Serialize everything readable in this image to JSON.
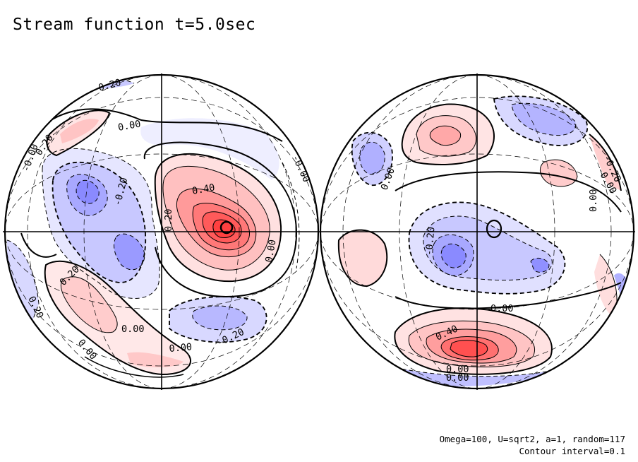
{
  "title": "Stream function t=5.0sec",
  "params_text": "Omega=100, U=sqrt2, a=1, random=117",
  "interval_text": "Contour interval=0.1",
  "colors": {
    "positive": "#ff4c4c",
    "negative": "#6464ff",
    "background": "#ffffff"
  },
  "left_labels": [
    "-0.20",
    "0.20",
    "0.00",
    "-0.00",
    "-0.20",
    "0.40",
    "0.20",
    "0.00",
    "-0.00",
    "0.20",
    "0.20",
    "0.00",
    "0.00",
    "-0.20",
    "0.00"
  ],
  "right_labels": [
    "-0.00",
    "-0.20",
    "0.00",
    "0.00",
    "-0.20",
    "0.00",
    "0.40",
    "0.00",
    "0.00"
  ]
}
